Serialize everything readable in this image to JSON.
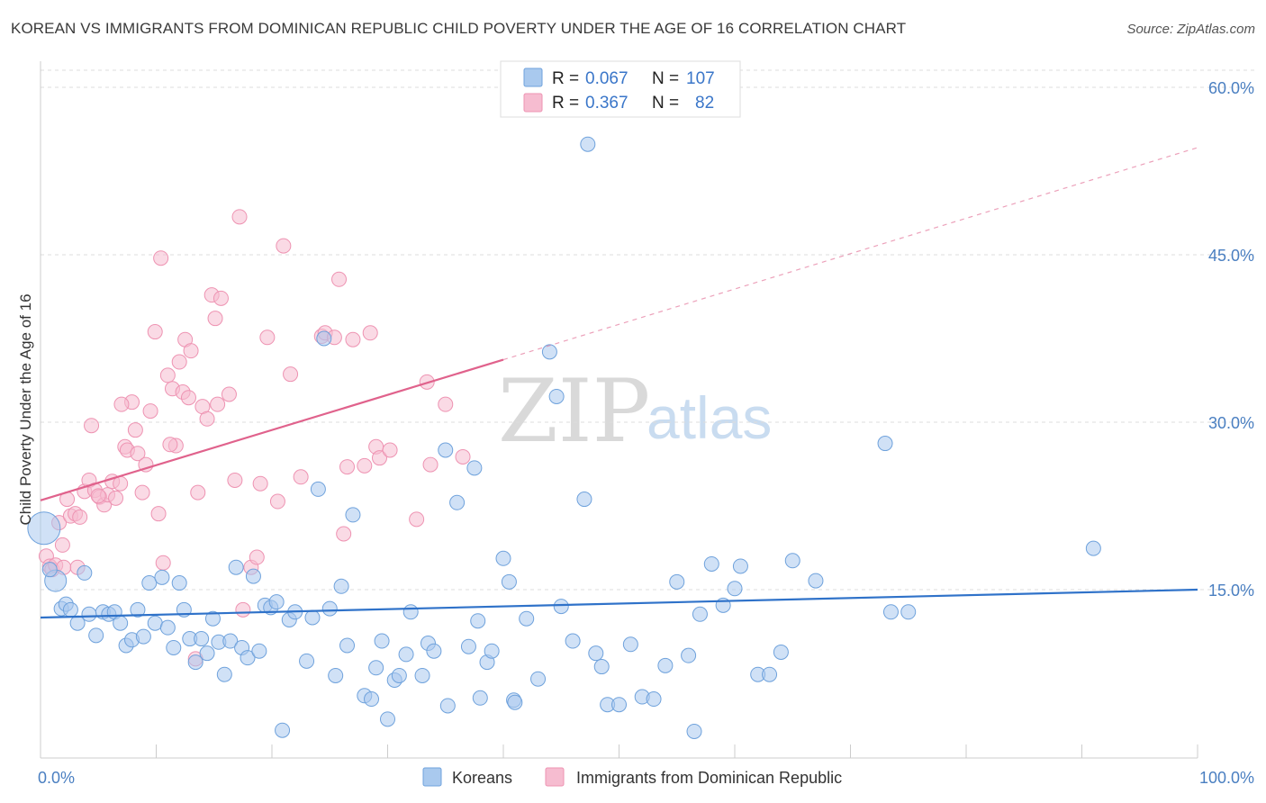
{
  "title": "KOREAN VS IMMIGRANTS FROM DOMINICAN REPUBLIC CHILD POVERTY UNDER THE AGE OF 16 CORRELATION CHART",
  "source": "Source: ZipAtlas.com",
  "watermark": {
    "zip": "ZIP",
    "atlas": "atlas"
  },
  "stats": {
    "korean": {
      "r_label": "R =",
      "r": "0.067",
      "n_label": "N =",
      "n": "107"
    },
    "dominican": {
      "r_label": "R =",
      "r": "0.367",
      "n_label": "N =",
      "n": "82"
    }
  },
  "colors": {
    "korean_fill": "#a9c9ee",
    "korean_stroke": "#6fa2dc",
    "korean_line": "#2f72c9",
    "dominican_fill": "#f6bcd0",
    "dominican_stroke": "#ee93b2",
    "dominican_line": "#e0628c",
    "tick_text": "#4a7fc1",
    "grid": "#dddddd"
  },
  "chart_data": {
    "type": "scatter",
    "ylabel": "Child Poverty Under the Age of 16",
    "xlim": [
      0,
      100
    ],
    "ylim": [
      0,
      62
    ],
    "x_ticks": [
      {
        "value": 0,
        "label": "0.0%"
      },
      {
        "value": 100,
        "label": "100.0%"
      }
    ],
    "y_ticks": [
      {
        "value": 15,
        "label": "15.0%"
      },
      {
        "value": 30,
        "label": "30.0%"
      },
      {
        "value": 45,
        "label": "45.0%"
      },
      {
        "value": 60,
        "label": "60.0%"
      }
    ],
    "grid": "horizontal dashed",
    "legend": "bottom-center",
    "series": [
      {
        "name": "Koreans",
        "trend": {
          "x0": 0,
          "y0": 12.5,
          "x1": 100,
          "y1": 15.0,
          "dashed_extension": false
        },
        "points": [
          [
            0.3,
            20.5
          ],
          [
            1.3,
            15.8
          ],
          [
            1.8,
            13.3
          ],
          [
            2.2,
            13.7
          ],
          [
            2.6,
            13.2
          ],
          [
            3.2,
            12.0
          ],
          [
            3.8,
            16.5
          ],
          [
            4.2,
            12.8
          ],
          [
            4.8,
            10.9
          ],
          [
            5.4,
            13.0
          ],
          [
            5.9,
            12.8
          ],
          [
            6.4,
            13.0
          ],
          [
            6.9,
            12.0
          ],
          [
            7.4,
            10.0
          ],
          [
            7.9,
            10.5
          ],
          [
            8.4,
            13.2
          ],
          [
            8.9,
            10.8
          ],
          [
            9.4,
            15.6
          ],
          [
            9.9,
            12.0
          ],
          [
            10.5,
            16.1
          ],
          [
            11.0,
            11.6
          ],
          [
            11.5,
            9.8
          ],
          [
            12.0,
            15.6
          ],
          [
            12.4,
            13.2
          ],
          [
            12.9,
            10.6
          ],
          [
            13.4,
            8.5
          ],
          [
            13.9,
            10.6
          ],
          [
            14.4,
            9.3
          ],
          [
            14.9,
            12.4
          ],
          [
            15.4,
            10.3
          ],
          [
            15.9,
            7.4
          ],
          [
            16.4,
            10.4
          ],
          [
            16.9,
            17.0
          ],
          [
            17.4,
            9.8
          ],
          [
            17.9,
            8.9
          ],
          [
            18.4,
            16.2
          ],
          [
            18.9,
            9.5
          ],
          [
            19.4,
            13.6
          ],
          [
            19.9,
            13.4
          ],
          [
            20.4,
            13.9
          ],
          [
            20.9,
            2.4
          ],
          [
            21.5,
            12.3
          ],
          [
            22.0,
            13.0
          ],
          [
            23.0,
            8.6
          ],
          [
            23.5,
            12.5
          ],
          [
            24.0,
            24.0
          ],
          [
            24.5,
            37.5
          ],
          [
            25.0,
            13.3
          ],
          [
            25.5,
            7.3
          ],
          [
            26.0,
            15.3
          ],
          [
            26.5,
            10.0
          ],
          [
            27.0,
            21.7
          ],
          [
            28.0,
            5.5
          ],
          [
            28.6,
            5.2
          ],
          [
            29.0,
            8.0
          ],
          [
            29.5,
            10.4
          ],
          [
            30.0,
            3.4
          ],
          [
            30.6,
            6.9
          ],
          [
            31.0,
            7.3
          ],
          [
            31.6,
            9.2
          ],
          [
            32.0,
            13.0
          ],
          [
            33.0,
            7.3
          ],
          [
            33.5,
            10.2
          ],
          [
            34.0,
            9.5
          ],
          [
            35.0,
            27.5
          ],
          [
            35.2,
            4.6
          ],
          [
            36.0,
            22.8
          ],
          [
            37.0,
            9.9
          ],
          [
            37.5,
            25.9
          ],
          [
            37.8,
            12.2
          ],
          [
            38.0,
            5.3
          ],
          [
            38.6,
            8.5
          ],
          [
            39.0,
            9.5
          ],
          [
            40.0,
            17.8
          ],
          [
            40.5,
            15.7
          ],
          [
            40.9,
            5.1
          ],
          [
            41.0,
            4.9
          ],
          [
            42.0,
            12.4
          ],
          [
            43.0,
            7.0
          ],
          [
            44.0,
            36.3
          ],
          [
            44.6,
            32.3
          ],
          [
            45.0,
            13.5
          ],
          [
            46.0,
            10.4
          ],
          [
            47.0,
            23.1
          ],
          [
            47.3,
            54.9
          ],
          [
            48.0,
            9.3
          ],
          [
            48.5,
            8.1
          ],
          [
            49.0,
            4.7
          ],
          [
            50.0,
            4.7
          ],
          [
            51.0,
            10.1
          ],
          [
            52.0,
            5.4
          ],
          [
            53.0,
            5.2
          ],
          [
            54.0,
            8.2
          ],
          [
            55.0,
            15.7
          ],
          [
            56.0,
            9.1
          ],
          [
            56.5,
            2.3
          ],
          [
            57.0,
            12.8
          ],
          [
            58.0,
            17.3
          ],
          [
            59.0,
            13.6
          ],
          [
            60.0,
            15.1
          ],
          [
            60.5,
            17.1
          ],
          [
            62.0,
            7.4
          ],
          [
            63.0,
            7.4
          ],
          [
            64.0,
            9.4
          ],
          [
            65.0,
            17.6
          ],
          [
            67.0,
            15.8
          ],
          [
            73.0,
            28.1
          ],
          [
            73.5,
            13.0
          ],
          [
            75.0,
            13.0
          ],
          [
            91.0,
            18.7
          ],
          [
            0.8,
            16.8
          ]
        ]
      },
      {
        "name": "Immigrants from Dominican Republic",
        "trend": {
          "x0": 0,
          "y0": 23.0,
          "x1": 40,
          "y1": 35.6,
          "dashed_to_x": 100,
          "dashed_to_y": 54.6
        },
        "points": [
          [
            0.5,
            18.0
          ],
          [
            0.8,
            17.1
          ],
          [
            1.0,
            16.8
          ],
          [
            1.3,
            17.2
          ],
          [
            1.6,
            21.0
          ],
          [
            1.9,
            19.0
          ],
          [
            2.3,
            23.1
          ],
          [
            2.6,
            21.6
          ],
          [
            3.0,
            21.8
          ],
          [
            3.4,
            21.5
          ],
          [
            3.8,
            23.8
          ],
          [
            4.2,
            24.8
          ],
          [
            4.4,
            29.7
          ],
          [
            4.7,
            23.9
          ],
          [
            5.1,
            23.3
          ],
          [
            5.5,
            22.6
          ],
          [
            5.8,
            23.5
          ],
          [
            6.2,
            24.7
          ],
          [
            6.5,
            23.2
          ],
          [
            6.9,
            24.5
          ],
          [
            7.3,
            27.8
          ],
          [
            7.5,
            27.5
          ],
          [
            7.9,
            31.8
          ],
          [
            8.2,
            29.3
          ],
          [
            8.4,
            27.2
          ],
          [
            8.8,
            23.7
          ],
          [
            9.1,
            26.2
          ],
          [
            9.5,
            31.0
          ],
          [
            9.9,
            38.1
          ],
          [
            10.2,
            21.8
          ],
          [
            10.4,
            44.7
          ],
          [
            10.6,
            17.4
          ],
          [
            11.0,
            34.2
          ],
          [
            11.4,
            33.0
          ],
          [
            11.7,
            27.9
          ],
          [
            12.0,
            35.4
          ],
          [
            12.3,
            32.7
          ],
          [
            12.5,
            37.4
          ],
          [
            12.8,
            32.2
          ],
          [
            13.0,
            36.4
          ],
          [
            13.4,
            8.8
          ],
          [
            13.6,
            23.7
          ],
          [
            14.0,
            31.4
          ],
          [
            14.4,
            30.3
          ],
          [
            14.8,
            41.4
          ],
          [
            15.1,
            39.3
          ],
          [
            15.3,
            31.6
          ],
          [
            15.6,
            41.1
          ],
          [
            16.3,
            32.5
          ],
          [
            16.8,
            24.8
          ],
          [
            17.2,
            48.4
          ],
          [
            17.5,
            13.2
          ],
          [
            18.2,
            17.0
          ],
          [
            18.7,
            17.9
          ],
          [
            19.0,
            24.5
          ],
          [
            19.6,
            37.6
          ],
          [
            20.5,
            22.9
          ],
          [
            21.0,
            45.8
          ],
          [
            21.6,
            34.3
          ],
          [
            22.5,
            25.1
          ],
          [
            24.3,
            37.7
          ],
          [
            24.6,
            38.0
          ],
          [
            25.4,
            37.6
          ],
          [
            25.8,
            42.8
          ],
          [
            26.2,
            20.0
          ],
          [
            26.5,
            26.0
          ],
          [
            27.0,
            37.4
          ],
          [
            28.0,
            26.1
          ],
          [
            28.5,
            38.0
          ],
          [
            29.0,
            27.8
          ],
          [
            29.3,
            26.8
          ],
          [
            30.2,
            27.5
          ],
          [
            32.5,
            21.3
          ],
          [
            33.4,
            33.6
          ],
          [
            33.7,
            26.2
          ],
          [
            35.0,
            31.6
          ],
          [
            36.5,
            26.9
          ],
          [
            2.0,
            17.0
          ],
          [
            7.0,
            31.6
          ],
          [
            11.2,
            28.0
          ],
          [
            3.2,
            17.0
          ],
          [
            5.0,
            23.4
          ]
        ]
      }
    ]
  },
  "legend": [
    "Koreans",
    "Immigrants from Dominican Republic"
  ]
}
